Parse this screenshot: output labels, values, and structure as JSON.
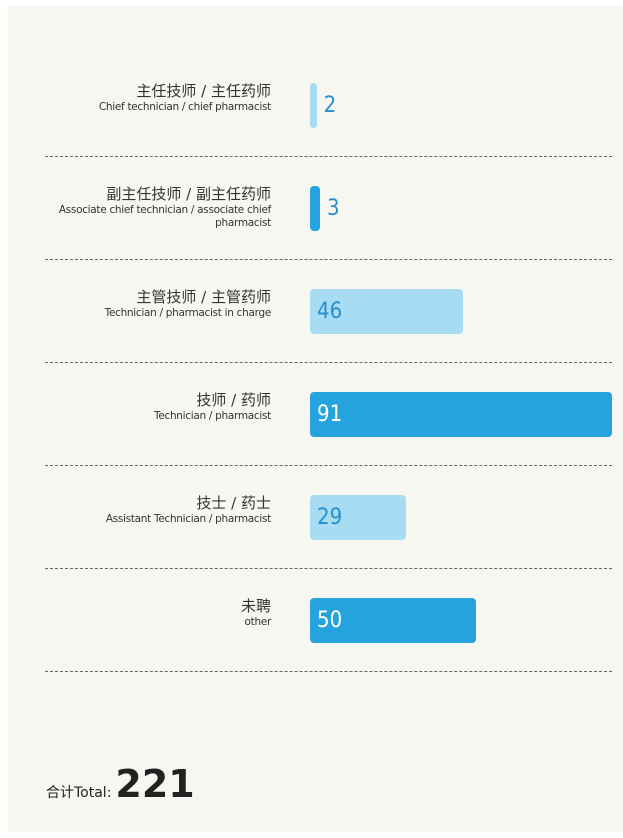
{
  "chart_data": {
    "type": "bar",
    "categories": [
      "主任技师 / 主任药师",
      "副主任技师 / 副主任药师",
      "主管技师 / 主管药师",
      "技师 / 药师",
      "技士 / 药士",
      "未聘"
    ],
    "category_translations": [
      "Chief technician / chief pharmacist",
      "Associate chief technician / associate chief pharmacist",
      "Technician / pharmacist in charge",
      "Technician / pharmacist",
      "Assistant Technician / pharmacist",
      "other"
    ],
    "values": [
      2,
      3,
      46,
      91,
      29,
      50
    ],
    "colors": [
      "#a8dcf3",
      "#25a3de",
      "#a8dcf3",
      "#25a3de",
      "#a8dcf3",
      "#25a3de"
    ],
    "total_label": "合计Total:",
    "total": 221
  }
}
